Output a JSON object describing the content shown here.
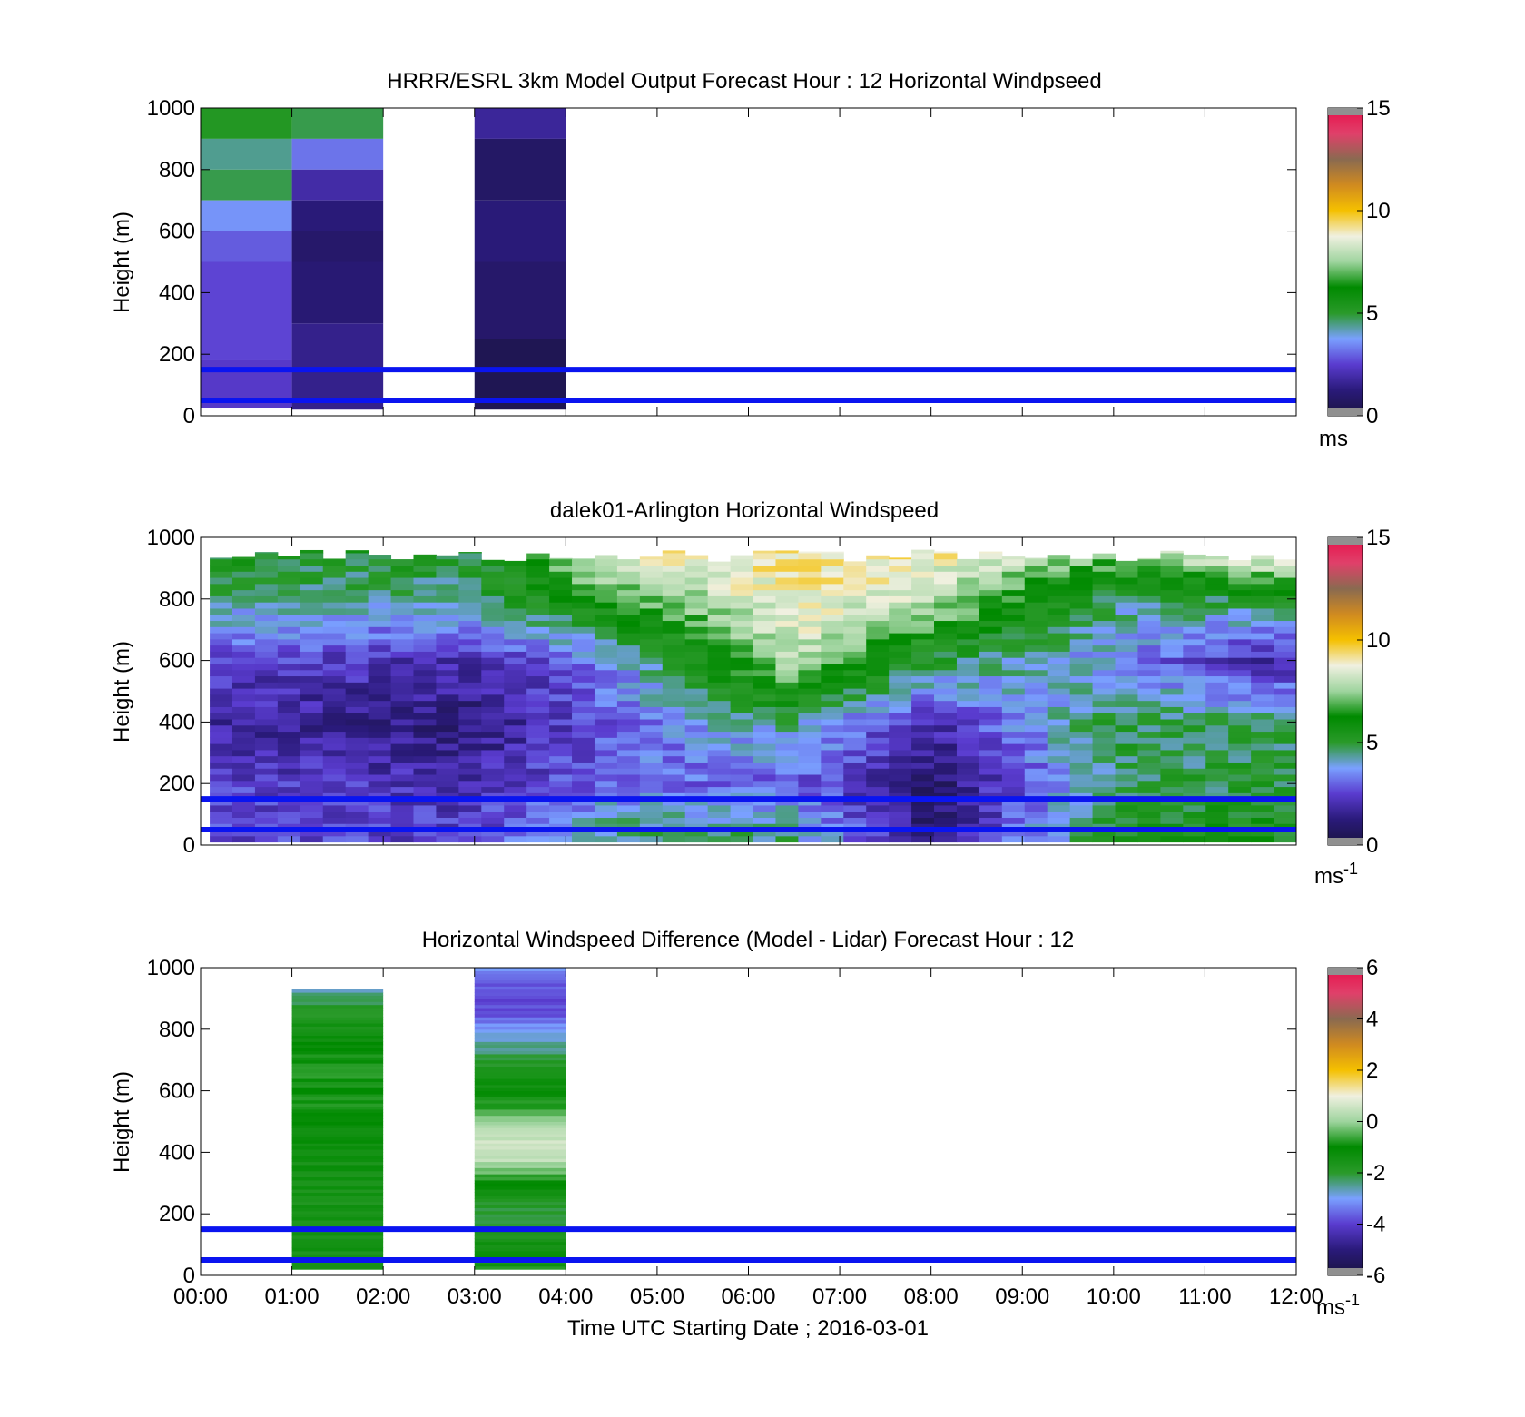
{
  "figure": {
    "xlabel": "Time UTC  Starting Date ; 2016-03-01",
    "x_tick_labels": [
      "00:00",
      "01:00",
      "02:00",
      "03:00",
      "04:00",
      "05:00",
      "06:00",
      "07:00",
      "08:00",
      "09:00",
      "10:00",
      "11:00",
      "12:00"
    ],
    "reference_line_color": "#0a14f0",
    "colormap": [
      "#1a1440",
      "#2a1a7a",
      "#5a3ccf",
      "#7aa0ff",
      "#2a9a2a",
      "#008a00",
      "#9ed49e",
      "#f0f0e0",
      "#f5c000",
      "#d08a20",
      "#8a6a50",
      "#e0406a",
      "#e8104a"
    ]
  },
  "chart_data": [
    {
      "type": "heatmap",
      "title": "HRRR/ESRL 3km Model Output   Forecast Hour : 12 Horizontal Windpseed",
      "xlabel": "",
      "ylabel": "Height (m)",
      "xlim": [
        0,
        12
      ],
      "ylim": [
        0,
        1000
      ],
      "y_ticks": [
        0,
        200,
        400,
        600,
        800,
        1000
      ],
      "reference_lines_m": [
        50,
        150
      ],
      "colorbar": {
        "min": 0,
        "max": 15,
        "ticks": [
          0,
          5,
          10,
          15
        ],
        "unit": "ms"
      },
      "columns": [
        {
          "t_start": 0,
          "t_end": 1,
          "layers": [
            {
              "bottom": 900,
              "top": 1000,
              "value": 5.2
            },
            {
              "bottom": 800,
              "top": 900,
              "value": 4.4
            },
            {
              "bottom": 700,
              "top": 800,
              "value": 4.8
            },
            {
              "bottom": 600,
              "top": 700,
              "value": 3.6
            },
            {
              "bottom": 500,
              "top": 600,
              "value": 2.9
            },
            {
              "bottom": 180,
              "top": 500,
              "value": 2.6
            },
            {
              "bottom": 25,
              "top": 180,
              "value": 2.4
            }
          ]
        },
        {
          "t_start": 1,
          "t_end": 2,
          "layers": [
            {
              "bottom": 900,
              "top": 1000,
              "value": 4.8
            },
            {
              "bottom": 800,
              "top": 900,
              "value": 3.2
            },
            {
              "bottom": 700,
              "top": 800,
              "value": 1.9
            },
            {
              "bottom": 600,
              "top": 700,
              "value": 1.2
            },
            {
              "bottom": 500,
              "top": 600,
              "value": 0.9
            },
            {
              "bottom": 300,
              "top": 500,
              "value": 1.1
            },
            {
              "bottom": 20,
              "top": 300,
              "value": 1.5
            }
          ]
        },
        {
          "t_start": 3,
          "t_end": 4,
          "layers": [
            {
              "bottom": 900,
              "top": 1000,
              "value": 1.7
            },
            {
              "bottom": 700,
              "top": 900,
              "value": 0.8
            },
            {
              "bottom": 500,
              "top": 700,
              "value": 1.2
            },
            {
              "bottom": 250,
              "top": 500,
              "value": 0.9
            },
            {
              "bottom": 20,
              "top": 250,
              "value": 0.4
            }
          ]
        }
      ]
    },
    {
      "type": "heatmap",
      "title": "dalek01-Arlington  Horizontal Windspeed",
      "xlabel": "",
      "ylabel": "Height (m)",
      "xlim": [
        0,
        12
      ],
      "ylim": [
        0,
        1000
      ],
      "y_ticks": [
        0,
        200,
        400,
        600,
        800,
        1000
      ],
      "reference_lines_m": [
        50,
        150
      ],
      "colorbar": {
        "min": 0,
        "max": 15,
        "ticks": [
          0,
          5,
          10,
          15
        ],
        "unit": "ms",
        "unit_exponent": "-1"
      },
      "data_time_range": [
        0.1,
        12.0
      ],
      "columns_count": 48,
      "height_range_m": [
        10,
        960
      ],
      "approximate_profiles": [
        {
          "t": 0.5,
          "heights_m": [
            50,
            200,
            400,
            600,
            800,
            950
          ],
          "values": [
            2.5,
            2.5,
            1.8,
            2.5,
            4.5,
            5.2
          ]
        },
        {
          "t": 3.0,
          "heights_m": [
            50,
            200,
            400,
            600,
            800,
            950
          ],
          "values": [
            2.5,
            2.0,
            1.2,
            2.0,
            4.5,
            5.0
          ]
        },
        {
          "t": 4.5,
          "heights_m": [
            50,
            200,
            400,
            600,
            800,
            950
          ],
          "values": [
            4.5,
            3.2,
            3.0,
            3.5,
            6.5,
            9.0
          ]
        },
        {
          "t": 6.5,
          "heights_m": [
            50,
            200,
            400,
            600,
            800,
            950
          ],
          "values": [
            4.5,
            3.0,
            4.5,
            8.0,
            9.0,
            9.2
          ]
        },
        {
          "t": 8.0,
          "heights_m": [
            50,
            200,
            400,
            600,
            800,
            950
          ],
          "values": [
            1.0,
            0.8,
            2.0,
            5.0,
            8.0,
            9.0
          ]
        },
        {
          "t": 10.0,
          "heights_m": [
            50,
            200,
            400,
            600,
            800,
            950
          ],
          "values": [
            5.5,
            4.5,
            5.0,
            3.5,
            4.5,
            7.5
          ]
        },
        {
          "t": 11.5,
          "heights_m": [
            50,
            200,
            400,
            600,
            800,
            950
          ],
          "values": [
            5.5,
            5.0,
            4.5,
            2.0,
            5.0,
            9.0
          ]
        }
      ]
    },
    {
      "type": "heatmap",
      "title": "Horizontal Windspeed Difference (Model - Lidar) Forecast Hour : 12",
      "xlabel": "Time UTC  Starting Date ; 2016-03-01",
      "ylabel": "Height (m)",
      "xlim": [
        0,
        12
      ],
      "ylim": [
        0,
        1000
      ],
      "y_ticks": [
        0,
        200,
        400,
        600,
        800,
        1000
      ],
      "x_ticks": [
        "00:00",
        "01:00",
        "02:00",
        "03:00",
        "04:00",
        "05:00",
        "06:00",
        "07:00",
        "08:00",
        "09:00",
        "10:00",
        "11:00",
        "12:00"
      ],
      "reference_lines_m": [
        50,
        150
      ],
      "colorbar": {
        "min": -6,
        "max": 6,
        "ticks": [
          -6,
          -4,
          -2,
          0,
          2,
          4,
          6
        ],
        "unit": "ms",
        "unit_exponent": "-1"
      },
      "columns": [
        {
          "t_start": 1,
          "t_end": 2,
          "height_range_m": [
            20,
            930
          ],
          "heights_m": [
            20,
            100,
            200,
            300,
            400,
            500,
            600,
            700,
            800,
            900,
            930
          ],
          "values": [
            -1.6,
            -1.5,
            -1.6,
            -1.5,
            -1.4,
            -1.2,
            -0.8,
            -0.9,
            -1.5,
            -2.2,
            -2.6
          ]
        },
        {
          "t_start": 3,
          "t_end": 4,
          "height_range_m": [
            20,
            1000
          ],
          "heights_m": [
            20,
            100,
            200,
            300,
            370,
            400,
            450,
            480,
            550,
            650,
            750,
            800,
            850,
            900,
            950,
            1000
          ],
          "values": [
            -0.8,
            -1.5,
            -2.2,
            -1.2,
            0.3,
            0.6,
            0.4,
            0.1,
            -0.8,
            -1.6,
            -2.5,
            -3.0,
            -3.8,
            -4.0,
            -3.6,
            -3.0
          ]
        }
      ]
    }
  ]
}
